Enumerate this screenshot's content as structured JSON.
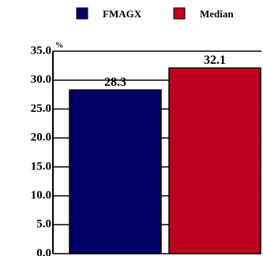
{
  "chart_data": {
    "type": "bar",
    "y_unit": "%",
    "series": [
      {
        "name": "FMAGX",
        "color": "#000066",
        "values": [
          28.3
        ]
      },
      {
        "name": "Median",
        "color": "#c00020",
        "values": [
          32.1
        ]
      }
    ],
    "ylim": [
      0,
      35
    ],
    "yticks": [
      {
        "value": 0,
        "label": "0.0"
      },
      {
        "value": 5,
        "label": "5.0"
      },
      {
        "value": 10,
        "label": "10.0"
      },
      {
        "value": 15,
        "label": "15.0"
      },
      {
        "value": 20,
        "label": "20.0"
      },
      {
        "value": 25,
        "label": "25.0"
      },
      {
        "value": 30,
        "label": "30.0"
      },
      {
        "value": 35,
        "label": "35.0"
      }
    ],
    "grid": true
  }
}
